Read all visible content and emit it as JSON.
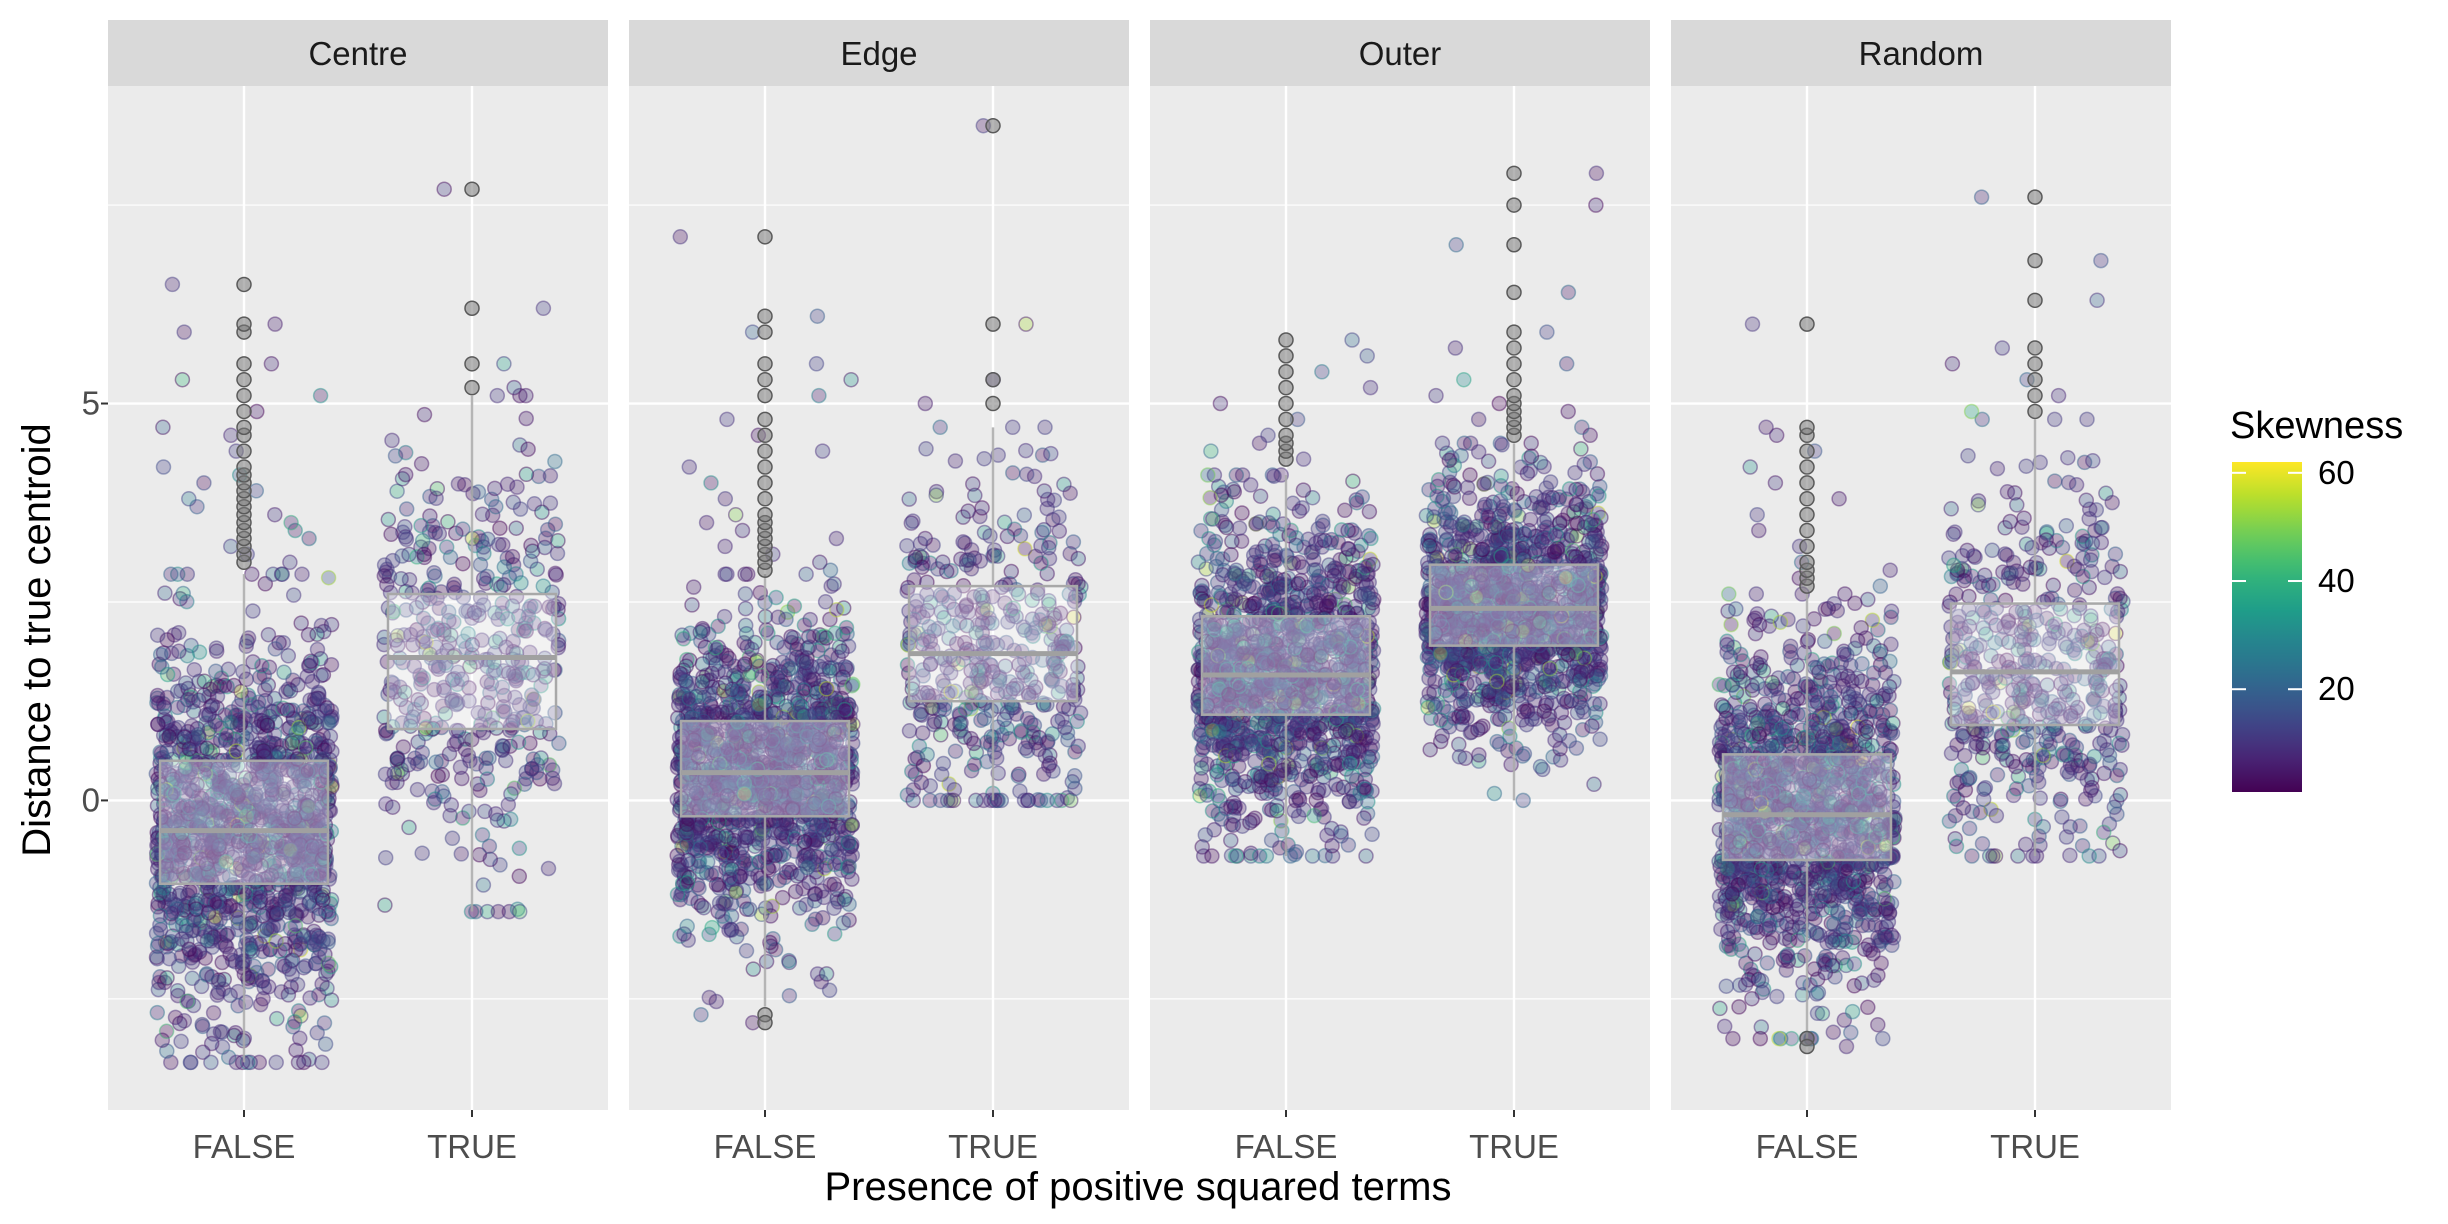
{
  "chart_data": {
    "type": "boxplot-jitter",
    "xlabel": "Presence of positive squared terms",
    "ylabel": "Distance to true centroid",
    "categories": [
      "FALSE",
      "TRUE"
    ],
    "y_ticks": [
      0,
      5
    ],
    "ylim": [
      -3.9,
      9.0
    ],
    "grid": true,
    "legend": {
      "title": "Skewness",
      "position": "right",
      "type": "colorbar",
      "palette": "viridis",
      "range": [
        1,
        62
      ],
      "ticks": [
        20,
        40,
        60
      ],
      "colors": [
        "#440154",
        "#3b528b",
        "#21918c",
        "#5ec962",
        "#fde725"
      ]
    },
    "panels": [
      {
        "name": "Centre",
        "boxes": [
          {
            "category": "FALSE",
            "whisker_low": -3.3,
            "q1": -1.05,
            "median": -0.38,
            "q3": 0.5,
            "whisker_high": 2.85,
            "n": 1400,
            "outliers": [
              3.0,
              3.1,
              3.2,
              3.3,
              3.4,
              3.5,
              3.6,
              3.7,
              3.8,
              3.9,
              4.0,
              4.1,
              4.2,
              4.4,
              4.6,
              4.7,
              4.9,
              5.1,
              5.3,
              5.5,
              5.9,
              6.0,
              6.5
            ]
          },
          {
            "category": "TRUE",
            "whisker_low": -1.4,
            "q1": 0.9,
            "median": 1.8,
            "q3": 2.6,
            "whisker_high": 5.1,
            "n": 450,
            "outliers": [
              5.2,
              5.5,
              6.2,
              7.7
            ]
          }
        ]
      },
      {
        "name": "Edge",
        "boxes": [
          {
            "category": "FALSE",
            "whisker_low": -2.6,
            "q1": -0.2,
            "median": 0.35,
            "q3": 1.0,
            "whisker_high": 2.85,
            "n": 1400,
            "outliers": [
              2.9,
              3.0,
              3.1,
              3.2,
              3.3,
              3.4,
              3.5,
              3.6,
              3.8,
              4.0,
              4.2,
              4.4,
              4.6,
              4.8,
              5.1,
              5.3,
              5.5,
              5.9,
              6.1,
              7.1,
              -2.7,
              -2.8
            ]
          },
          {
            "category": "TRUE",
            "whisker_low": 0.0,
            "q1": 1.25,
            "median": 1.85,
            "q3": 2.7,
            "whisker_high": 4.7,
            "n": 450,
            "outliers": [
              5.0,
              5.3,
              6.0,
              8.5
            ]
          }
        ]
      },
      {
        "name": "Outer",
        "boxes": [
          {
            "category": "FALSE",
            "whisker_low": -0.7,
            "q1": 1.08,
            "median": 1.58,
            "q3": 2.32,
            "whisker_high": 4.1,
            "n": 1300,
            "outliers": [
              4.3,
              4.4,
              4.5,
              4.6,
              4.8,
              5.0,
              5.2,
              5.4,
              5.6,
              5.8
            ]
          },
          {
            "category": "TRUE",
            "whisker_low": 0.0,
            "q1": 1.95,
            "median": 2.42,
            "q3": 2.97,
            "whisker_high": 4.5,
            "n": 1300,
            "outliers": [
              4.6,
              4.7,
              4.8,
              4.9,
              5.0,
              5.1,
              5.3,
              5.5,
              5.7,
              5.9,
              6.4,
              7.0,
              7.5,
              7.9
            ]
          }
        ]
      },
      {
        "name": "Random",
        "boxes": [
          {
            "category": "FALSE",
            "whisker_low": -3.0,
            "q1": -0.75,
            "median": -0.18,
            "q3": 0.58,
            "whisker_high": 2.6,
            "n": 1400,
            "outliers": [
              2.7,
              2.8,
              2.9,
              3.0,
              3.2,
              3.4,
              3.6,
              3.8,
              4.0,
              4.2,
              4.4,
              4.6,
              4.7,
              6.0,
              -3.0,
              -3.1
            ]
          },
          {
            "category": "TRUE",
            "whisker_low": -0.7,
            "q1": 0.95,
            "median": 1.62,
            "q3": 2.48,
            "whisker_high": 4.8,
            "n": 500,
            "outliers": [
              4.9,
              5.1,
              5.3,
              5.5,
              5.7,
              6.3,
              6.8,
              7.6
            ]
          }
        ]
      }
    ]
  }
}
